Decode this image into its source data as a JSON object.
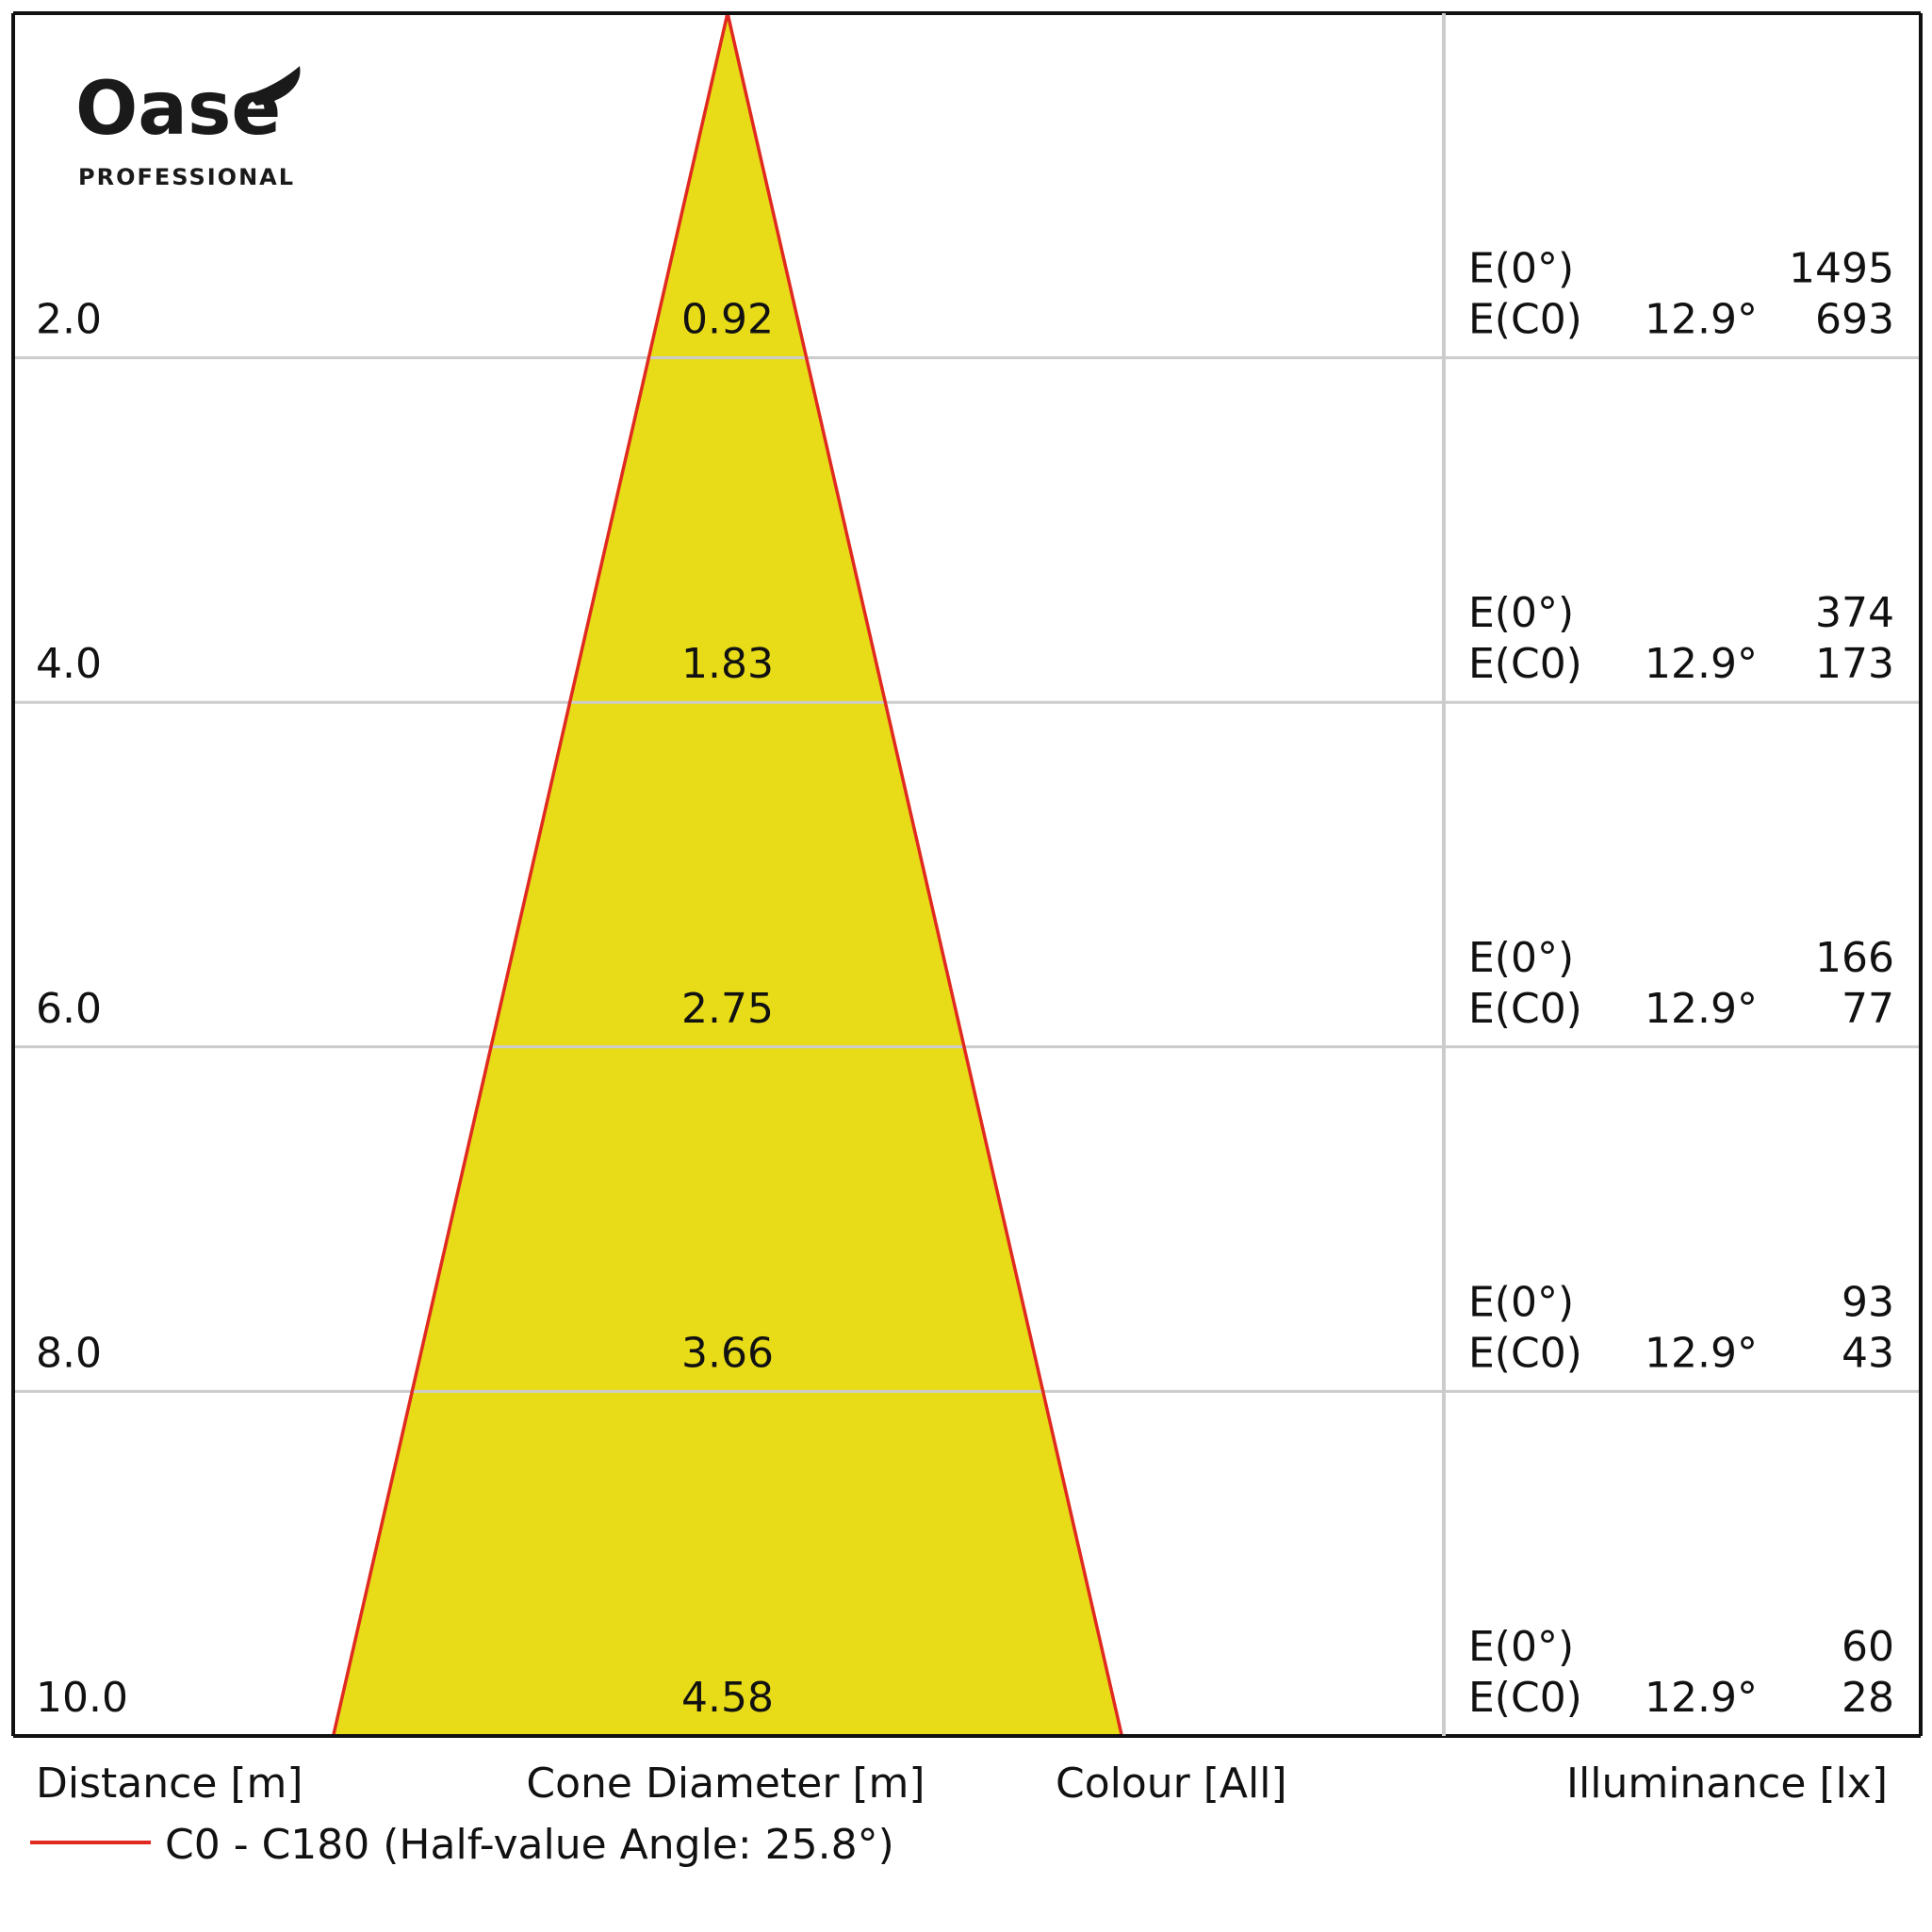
{
  "logo": {
    "brand": "Oase",
    "tagline": "PROFESSIONAL"
  },
  "colors": {
    "cone_fill": "#e8dc18",
    "cone_edge": "#e02a20",
    "frame": "#111111",
    "grid": "#cccccc"
  },
  "chart_data": {
    "type": "table",
    "chart_kind": "isolux cone diagram",
    "columns": {
      "distance": "Distance [m]",
      "cone_diameter": "Cone Diameter [m]",
      "colour": "Colour [All]",
      "illuminance": "Illuminance [lx]"
    },
    "legend": {
      "label": "C0 - C180 (Half-value Angle: 25.8°)",
      "placement": "bottom-left"
    },
    "distance_range": [
      0,
      10
    ],
    "row_label_e0": "E(0°)",
    "row_label_ec0": "E(C0)",
    "rows": [
      {
        "distance": "2.0",
        "distance_value": 2.0,
        "diameter": "0.92",
        "diameter_value": 0.92,
        "e0": "1495",
        "ec0_angle": "12.9°",
        "ec0": "693"
      },
      {
        "distance": "4.0",
        "distance_value": 4.0,
        "diameter": "1.83",
        "diameter_value": 1.83,
        "e0": "374",
        "ec0_angle": "12.9°",
        "ec0": "173"
      },
      {
        "distance": "6.0",
        "distance_value": 6.0,
        "diameter": "2.75",
        "diameter_value": 2.75,
        "e0": "166",
        "ec0_angle": "12.9°",
        "ec0": "77"
      },
      {
        "distance": "8.0",
        "distance_value": 8.0,
        "diameter": "3.66",
        "diameter_value": 3.66,
        "e0": "93",
        "ec0_angle": "12.9°",
        "ec0": "43"
      },
      {
        "distance": "10.0",
        "distance_value": 10.0,
        "diameter": "4.58",
        "diameter_value": 4.58,
        "e0": "60",
        "ec0_angle": "12.9°",
        "ec0": "28"
      }
    ]
  }
}
